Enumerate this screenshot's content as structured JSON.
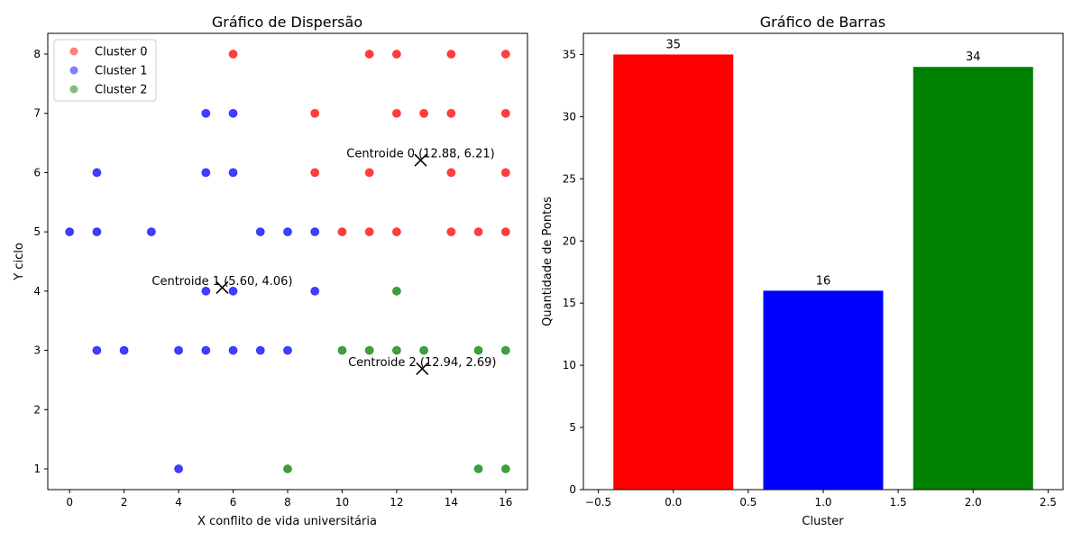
{
  "chart_data": [
    {
      "type": "scatter",
      "title": "Gráfico de Dispersão",
      "xlabel": "X conflito de vida universitária",
      "ylabel": "Y ciclo",
      "xlim": [
        -0.8,
        16.8
      ],
      "ylim": [
        0.65,
        8.35
      ],
      "xticks": [
        0,
        2,
        4,
        6,
        8,
        10,
        12,
        14,
        16
      ],
      "yticks": [
        1,
        2,
        3,
        4,
        5,
        6,
        7,
        8
      ],
      "legend_position": "top-left",
      "series": [
        {
          "name": "Cluster 0",
          "color": "#ff0000",
          "points": [
            [
              6,
              8
            ],
            [
              11,
              8
            ],
            [
              12,
              8
            ],
            [
              14,
              8
            ],
            [
              16,
              8
            ],
            [
              9,
              7
            ],
            [
              12,
              7
            ],
            [
              13,
              7
            ],
            [
              14,
              7
            ],
            [
              16,
              7
            ],
            [
              9,
              6
            ],
            [
              11,
              6
            ],
            [
              14,
              6
            ],
            [
              16,
              6
            ],
            [
              10,
              5
            ],
            [
              11,
              5
            ],
            [
              12,
              5
            ],
            [
              14,
              5
            ],
            [
              15,
              5
            ],
            [
              16,
              5
            ]
          ]
        },
        {
          "name": "Cluster 1",
          "color": "#0000ff",
          "points": [
            [
              5,
              7
            ],
            [
              6,
              7
            ],
            [
              1,
              6
            ],
            [
              5,
              6
            ],
            [
              6,
              6
            ],
            [
              0,
              5
            ],
            [
              1,
              5
            ],
            [
              3,
              5
            ],
            [
              7,
              5
            ],
            [
              8,
              5
            ],
            [
              9,
              5
            ],
            [
              5,
              4
            ],
            [
              6,
              4
            ],
            [
              9,
              4
            ],
            [
              1,
              3
            ],
            [
              2,
              3
            ],
            [
              4,
              3
            ],
            [
              5,
              3
            ],
            [
              6,
              3
            ],
            [
              7,
              3
            ],
            [
              8,
              3
            ],
            [
              4,
              1
            ]
          ]
        },
        {
          "name": "Cluster 2",
          "color": "#008000",
          "points": [
            [
              12,
              4
            ],
            [
              10,
              3
            ],
            [
              11,
              3
            ],
            [
              12,
              3
            ],
            [
              13,
              3
            ],
            [
              15,
              3
            ],
            [
              16,
              3
            ],
            [
              8,
              1
            ],
            [
              15,
              1
            ],
            [
              16,
              1
            ]
          ]
        }
      ],
      "centroids": [
        {
          "label": "Centroide 0 (12.88, 6.21)",
          "x": 12.88,
          "y": 6.21
        },
        {
          "label": "Centroide 1 (5.60, 4.06)",
          "x": 5.6,
          "y": 4.06
        },
        {
          "label": "Centroide 2 (12.94, 2.69)",
          "x": 12.94,
          "y": 2.69
        }
      ]
    },
    {
      "type": "bar",
      "title": "Gráfico de Barras",
      "xlabel": "Cluster",
      "ylabel": "Quantidade de Pontos",
      "xlim": [
        -0.6,
        2.6
      ],
      "ylim": [
        0,
        36.7
      ],
      "xticks": [
        -0.5,
        0.0,
        0.5,
        1.0,
        1.5,
        2.0,
        2.5
      ],
      "xtick_labels": [
        "−0.5",
        "0.0",
        "0.5",
        "1.0",
        "1.5",
        "2.0",
        "2.5"
      ],
      "yticks": [
        0,
        5,
        10,
        15,
        20,
        25,
        30,
        35
      ],
      "bar_width": 0.8,
      "bars": [
        {
          "x": 0,
          "value": 35,
          "label": "35",
          "color": "#ff0000"
        },
        {
          "x": 1,
          "value": 16,
          "label": "16",
          "color": "#0000ff"
        },
        {
          "x": 2,
          "value": 34,
          "label": "34",
          "color": "#008000"
        }
      ]
    }
  ]
}
